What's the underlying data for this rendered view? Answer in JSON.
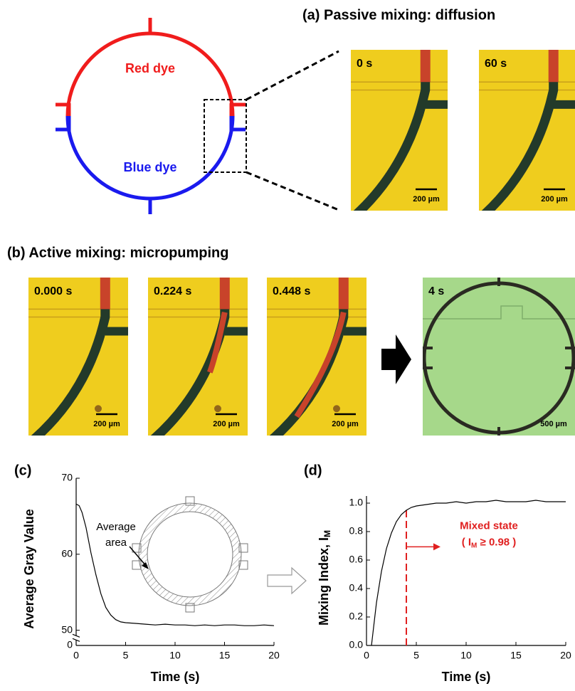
{
  "figure": {
    "schematic": {
      "red_label": "Red dye",
      "blue_label": "Blue dye"
    },
    "panel_a": {
      "title": "(a) Passive mixing: diffusion",
      "frames": [
        {
          "time": "0 s",
          "scale": "200 µm"
        },
        {
          "time": "60 s",
          "scale": "200 µm"
        }
      ]
    },
    "panel_b": {
      "title": "(b) Active mixing: micropumping",
      "frames": [
        {
          "time": "0.000 s",
          "scale": "200 µm"
        },
        {
          "time": "0.224 s",
          "scale": "200 µm"
        },
        {
          "time": "0.448 s",
          "scale": "200 µm"
        },
        {
          "time": "4 s",
          "scale": "500 µm"
        }
      ]
    },
    "panel_c_label": "(c)",
    "panel_d_label": "(d)"
  },
  "chart_data": [
    {
      "type": "line",
      "xlabel": "Time (s)",
      "ylabel": "Average Gray Value",
      "inset_label": [
        "Average",
        "area"
      ],
      "x": [
        0,
        0.3,
        0.6,
        1,
        1.5,
        2,
        2.5,
        3,
        3.5,
        4,
        4.5,
        5,
        6,
        7,
        8,
        9,
        10,
        11,
        12,
        13,
        14,
        15,
        16,
        17,
        18,
        19,
        20
      ],
      "values": [
        66.6,
        66.4,
        65.5,
        63.5,
        60.2,
        57.3,
        54.8,
        53.0,
        52.0,
        51.4,
        51.1,
        51.0,
        50.9,
        50.8,
        50.7,
        50.8,
        50.7,
        50.7,
        50.6,
        50.7,
        50.6,
        50.7,
        50.7,
        50.6,
        50.6,
        50.7,
        50.6
      ],
      "color": "#000000",
      "xlim": [
        0,
        20
      ],
      "xticks": [
        0,
        5,
        10,
        15,
        20
      ],
      "ylim": [
        0,
        70
      ],
      "yticks": [
        0,
        50,
        60,
        70
      ],
      "y_break": [
        1,
        49
      ]
    },
    {
      "type": "line",
      "xlabel": "Time (s)",
      "ylabel": "Mixing Index, I",
      "ylabel_sub": "M",
      "x": [
        0.5,
        0.7,
        1,
        1.5,
        2,
        2.5,
        3,
        3.5,
        4,
        4.5,
        5,
        6,
        7,
        8,
        9,
        10,
        11,
        12,
        13,
        14,
        15,
        16,
        17,
        18,
        19,
        20
      ],
      "values": [
        0,
        0.12,
        0.3,
        0.52,
        0.68,
        0.79,
        0.87,
        0.92,
        0.95,
        0.97,
        0.98,
        0.99,
        1.0,
        1.0,
        1.01,
        1.0,
        1.01,
        1.01,
        1.02,
        1.01,
        1.01,
        1.01,
        1.02,
        1.01,
        1.01,
        1.01
      ],
      "color": "#000000",
      "xlim": [
        0,
        20
      ],
      "xticks": [
        0,
        5,
        10,
        15,
        20
      ],
      "ylim": [
        0,
        1.05
      ],
      "yticks": [
        {
          "value": 0,
          "label": "0.0"
        },
        0.2,
        0.4,
        0.6,
        0.8,
        {
          "value": 1,
          "label": "1.0"
        }
      ],
      "threshold_x": 4,
      "threshold_color": "#e02020",
      "annotation": {
        "title": "Mixed state",
        "pre": "( I",
        "sub": "M",
        "post": " ≥ 0.98 )"
      }
    }
  ]
}
